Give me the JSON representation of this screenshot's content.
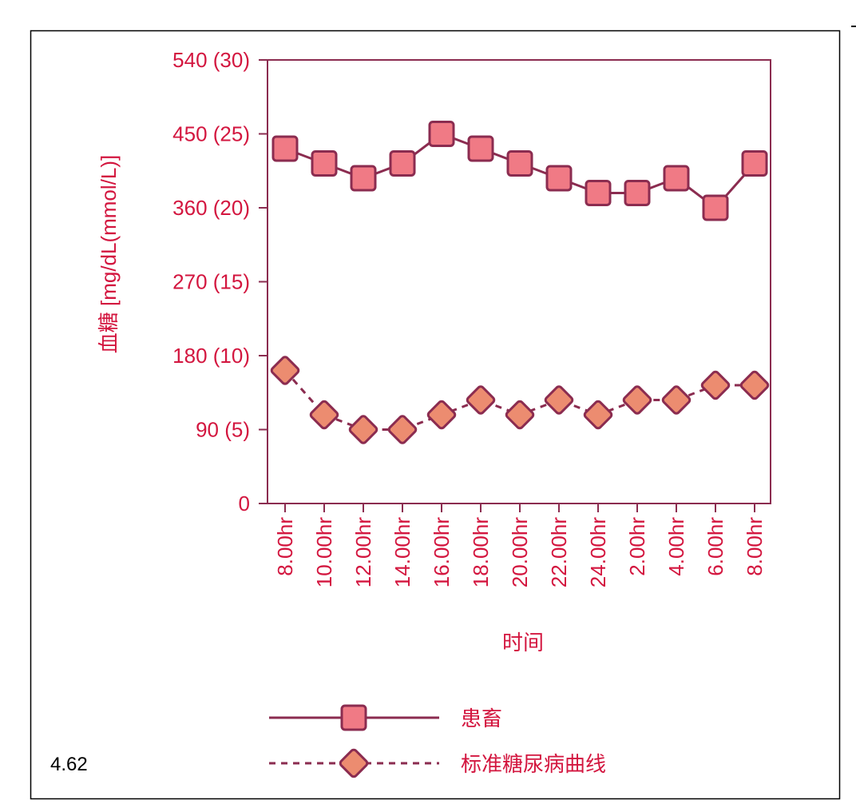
{
  "figure_number": "4.62",
  "colors": {
    "text": "#d3163f",
    "line": "#8b2c50",
    "patient_fill": "#f07a85",
    "standard_fill": "#ec8c70",
    "frame": "#000000"
  },
  "chart_data": {
    "type": "line",
    "title": "",
    "xlabel": "时间",
    "ylabel": "血糖 [mg/dL(mmol/L)]",
    "ylim": [
      0,
      540
    ],
    "yticks": [
      0,
      90,
      180,
      270,
      360,
      450,
      540
    ],
    "ytick_labels": [
      "0",
      "90 (5)",
      "180 (10)",
      "270 (15)",
      "360 (20)",
      "450 (25)",
      "540 (30)"
    ],
    "categories": [
      "8.00hr",
      "10.00hr",
      "12.00hr",
      "14.00hr",
      "16.00hr",
      "18.00hr",
      "20.00hr",
      "22.00hr",
      "24.00hr",
      "2.00hr",
      "4.00hr",
      "6.00hr",
      "8.00hr"
    ],
    "grid": false,
    "legend_position": "bottom",
    "series": [
      {
        "name": "患畜",
        "marker": "square",
        "line": "solid",
        "values": [
          432,
          414,
          396,
          414,
          450,
          432,
          414,
          396,
          378,
          378,
          396,
          360,
          414
        ]
      },
      {
        "name": "标准糖尿病曲线",
        "marker": "diamond",
        "line": "dashed",
        "values": [
          162,
          108,
          90,
          90,
          108,
          126,
          108,
          126,
          108,
          126,
          126,
          144,
          144
        ]
      }
    ]
  }
}
